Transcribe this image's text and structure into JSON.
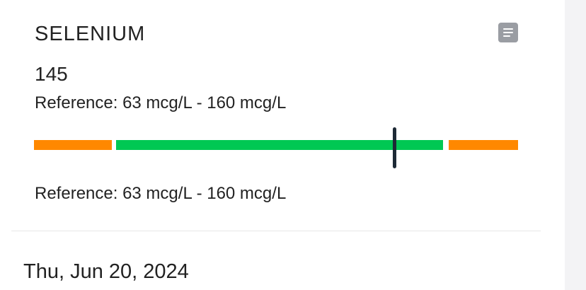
{
  "card": {
    "title": "SELENIUM",
    "value": "145",
    "reference_top": "Reference: 63 mcg/L - 160 mcg/L",
    "reference_bottom": "Reference: 63 mcg/L - 160 mcg/L",
    "notes_icon": "notes-icon",
    "range": {
      "low": 63,
      "high": 160,
      "unit": "mcg/L",
      "current": 145,
      "colors": {
        "out_of_range": "#ff8800",
        "in_range": "#00c853",
        "marker": "#1e2a36"
      }
    }
  },
  "next_entry": {
    "date": "Thu, Jun 20, 2024"
  }
}
